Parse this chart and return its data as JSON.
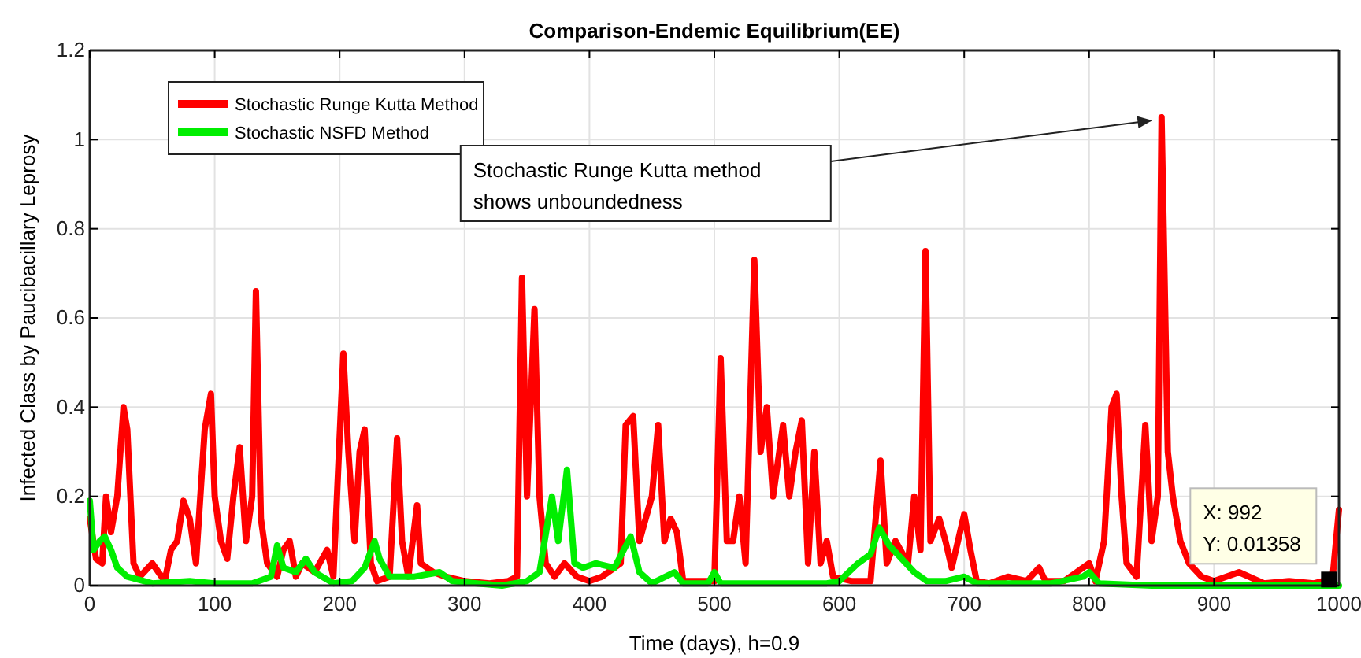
{
  "chart_data": {
    "type": "line",
    "title": "Comparison-Endemic Equilibrium(EE)",
    "xlabel": "Time (days), h=0.9",
    "ylabel": "Infected Class by Paucibacillary Leprosy",
    "xlim": [
      0,
      1000
    ],
    "xticks": [
      0,
      100,
      200,
      300,
      400,
      500,
      600,
      700,
      800,
      900,
      1000
    ],
    "ylim": [
      0,
      1.2
    ],
    "yticks": [
      0,
      0.2,
      0.4,
      0.6,
      0.8,
      1,
      1.2
    ],
    "grid": true,
    "legend": "top left",
    "line_style": "solid",
    "marker": "none",
    "annotations": [
      "Stochastic Runge Kutta method\nshows unboundedness",
      {
        "text": "X: 992\nY: 0.01358",
        "x": 992,
        "y": 0.01358
      }
    ],
    "series": [
      {
        "name": "Stochastic Runge Kutta Method",
        "color": "#ff0000",
        "x": [
          0,
          5,
          10,
          13,
          17,
          22,
          27,
          30,
          35,
          40,
          50,
          60,
          65,
          70,
          75,
          80,
          85,
          92,
          97,
          100,
          105,
          110,
          115,
          120,
          125,
          130,
          133,
          137,
          142,
          150,
          155,
          160,
          165,
          170,
          180,
          190,
          195,
          203,
          207,
          212,
          216,
          220,
          225,
          230,
          240,
          246,
          250,
          255,
          262,
          265,
          275,
          285,
          300,
          320,
          335,
          342,
          346,
          350,
          356,
          360,
          365,
          372,
          380,
          390,
          400,
          410,
          425,
          429,
          435,
          440,
          450,
          455,
          460,
          465,
          470,
          475,
          500,
          505,
          510,
          515,
          520,
          525,
          532,
          537,
          542,
          547,
          555,
          560,
          565,
          570,
          575,
          580,
          585,
          590,
          595,
          610,
          625,
          633,
          638,
          645,
          655,
          660,
          665,
          669,
          673,
          680,
          685,
          690,
          700,
          705,
          710,
          720,
          735,
          750,
          760,
          765,
          780,
          790,
          800,
          805,
          812,
          818,
          822,
          826,
          830,
          838,
          845,
          850,
          855,
          858,
          863,
          867,
          873,
          880,
          890,
          900,
          920,
          940,
          960,
          980,
          992,
          995,
          1000
        ],
        "values": [
          0.15,
          0.06,
          0.05,
          0.2,
          0.12,
          0.2,
          0.4,
          0.35,
          0.05,
          0.02,
          0.05,
          0.01,
          0.08,
          0.1,
          0.19,
          0.15,
          0.05,
          0.35,
          0.43,
          0.2,
          0.1,
          0.06,
          0.2,
          0.31,
          0.1,
          0.2,
          0.66,
          0.15,
          0.05,
          0.02,
          0.08,
          0.1,
          0.02,
          0.05,
          0.03,
          0.08,
          0.02,
          0.52,
          0.3,
          0.1,
          0.3,
          0.35,
          0.05,
          0.01,
          0.02,
          0.33,
          0.1,
          0.02,
          0.18,
          0.05,
          0.03,
          0.02,
          0.01,
          0.005,
          0.01,
          0.02,
          0.69,
          0.2,
          0.62,
          0.2,
          0.05,
          0.02,
          0.05,
          0.02,
          0.01,
          0.02,
          0.05,
          0.36,
          0.38,
          0.1,
          0.2,
          0.36,
          0.1,
          0.15,
          0.12,
          0.01,
          0.01,
          0.51,
          0.1,
          0.1,
          0.2,
          0.05,
          0.73,
          0.3,
          0.4,
          0.2,
          0.36,
          0.2,
          0.3,
          0.37,
          0.05,
          0.3,
          0.05,
          0.1,
          0.02,
          0.01,
          0.01,
          0.28,
          0.05,
          0.1,
          0.05,
          0.2,
          0.08,
          0.75,
          0.1,
          0.15,
          0.1,
          0.04,
          0.16,
          0.08,
          0.01,
          0.005,
          0.02,
          0.01,
          0.04,
          0.01,
          0.01,
          0.03,
          0.05,
          0.01,
          0.1,
          0.4,
          0.43,
          0.2,
          0.05,
          0.02,
          0.36,
          0.1,
          0.2,
          1.05,
          0.3,
          0.2,
          0.1,
          0.05,
          0.02,
          0.01,
          0.03,
          0.005,
          0.01,
          0.005,
          0.01358,
          0.02,
          0.17
        ]
      },
      {
        "name": "Stochastic NSFD Method",
        "color": "#00ee00",
        "x": [
          0,
          3,
          8,
          12,
          17,
          22,
          30,
          50,
          80,
          100,
          130,
          145,
          150,
          155,
          165,
          173,
          180,
          195,
          210,
          220,
          228,
          232,
          240,
          260,
          280,
          290,
          310,
          330,
          350,
          360,
          370,
          375,
          382,
          388,
          395,
          405,
          420,
          433,
          440,
          450,
          468,
          475,
          495,
          500,
          505,
          530,
          570,
          590,
          600,
          615,
          625,
          632,
          640,
          650,
          660,
          670,
          685,
          700,
          710,
          740,
          770,
          795,
          800,
          808,
          850,
          1000
        ],
        "values": [
          0.19,
          0.08,
          0.1,
          0.11,
          0.08,
          0.04,
          0.02,
          0.005,
          0.01,
          0.005,
          0.005,
          0.02,
          0.09,
          0.04,
          0.03,
          0.06,
          0.03,
          0.005,
          0.01,
          0.04,
          0.1,
          0.06,
          0.02,
          0.02,
          0.03,
          0.01,
          0.005,
          0,
          0.01,
          0.03,
          0.2,
          0.1,
          0.26,
          0.05,
          0.04,
          0.05,
          0.04,
          0.11,
          0.03,
          0.005,
          0.03,
          0.005,
          0.005,
          0.03,
          0.005,
          0.005,
          0.005,
          0.005,
          0.01,
          0.05,
          0.07,
          0.13,
          0.09,
          0.06,
          0.03,
          0.01,
          0.01,
          0.02,
          0.005,
          0.005,
          0.005,
          0.02,
          0.03,
          0.005,
          0,
          0
        ]
      }
    ]
  }
}
